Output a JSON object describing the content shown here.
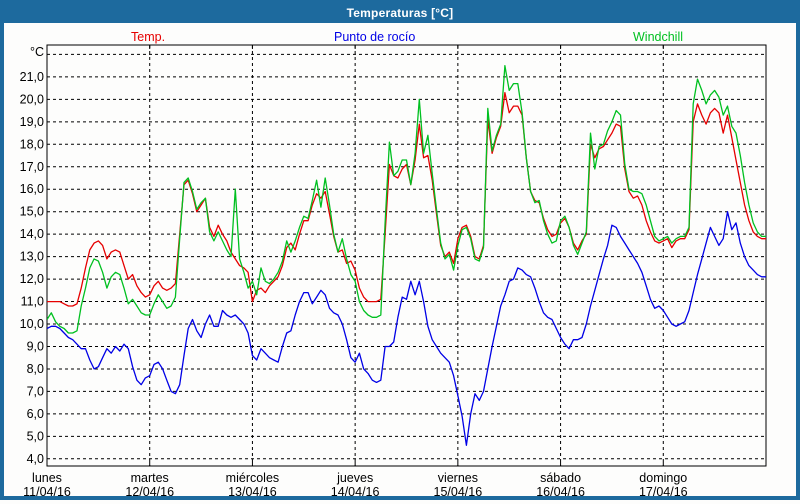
{
  "window": {
    "title": "Temperaturas [°C]",
    "titlebar_color": "#1d6a9e",
    "background": "#fdfdfc"
  },
  "legend": {
    "temp": {
      "label": "Temp.",
      "color": "#e60000"
    },
    "dewpoint": {
      "label": "Punto de rocío",
      "color": "#0000e6"
    },
    "windchill": {
      "label": "Windchill",
      "color": "#00c020"
    }
  },
  "chart_data": {
    "type": "line",
    "title": "Temperaturas [°C]",
    "unit_label": "°C",
    "grid": true,
    "ylim": [
      3.68,
      22.42
    ],
    "y_grid_values": [
      22,
      21,
      20,
      19,
      18,
      17,
      16,
      15,
      14,
      13,
      12,
      11,
      10,
      9,
      8,
      7,
      6,
      5,
      4
    ],
    "y_tick_values": [
      21,
      20,
      19,
      18,
      17,
      16,
      15,
      14,
      13,
      12,
      11,
      10,
      9,
      8,
      7,
      6,
      5,
      4
    ],
    "y_tick_labels": [
      "21,0",
      "20,0",
      "19,0",
      "18,0",
      "17,0",
      "16,0",
      "15,0",
      "14,0",
      "13,0",
      "12,0",
      "11,0",
      "10,0",
      "9,0",
      "8,0",
      "7,0",
      "6,0",
      "5,0",
      "4,0"
    ],
    "x_days": [
      {
        "name": "lunes",
        "date": "11/04/16"
      },
      {
        "name": "martes",
        "date": "12/04/16"
      },
      {
        "name": "miércoles",
        "date": "13/04/16"
      },
      {
        "name": "jueves",
        "date": "14/04/16"
      },
      {
        "name": "viernes",
        "date": "15/04/16"
      },
      {
        "name": "sábado",
        "date": "16/04/16"
      },
      {
        "name": "domingo",
        "date": "17/04/16"
      }
    ],
    "hours_per_day": 24,
    "series": [
      {
        "name": "Temp.",
        "color": "#e60000",
        "values": [
          11.0,
          11.0,
          11.0,
          11.0,
          10.9,
          10.8,
          10.8,
          10.9,
          11.6,
          12.5,
          13.3,
          13.6,
          13.7,
          13.5,
          12.9,
          13.2,
          13.3,
          13.2,
          12.6,
          12.0,
          12.2,
          11.7,
          11.4,
          11.2,
          11.3,
          11.7,
          11.9,
          11.6,
          11.5,
          11.6,
          11.8,
          14.0,
          16.2,
          16.4,
          15.8,
          15.0,
          15.3,
          15.6,
          14.3,
          13.9,
          14.4,
          14.0,
          13.7,
          13.2,
          12.9,
          12.6,
          12.5,
          12.3,
          11.0,
          11.5,
          11.6,
          11.4,
          11.7,
          11.9,
          12.1,
          12.6,
          13.4,
          13.6,
          13.3,
          14.0,
          14.6,
          14.6,
          15.3,
          15.8,
          15.6,
          15.9,
          14.9,
          13.9,
          13.2,
          13.3,
          12.7,
          12.8,
          12.4,
          11.6,
          11.2,
          11.0,
          11.0,
          11.0,
          11.1,
          14.0,
          17.1,
          16.6,
          16.5,
          16.9,
          17.1,
          16.2,
          17.3,
          18.9,
          17.4,
          17.5,
          16.4,
          14.9,
          13.5,
          13.0,
          13.2,
          12.7,
          13.8,
          14.3,
          14.4,
          13.9,
          13.0,
          12.9,
          13.5,
          19.1,
          17.6,
          18.3,
          18.8,
          20.3,
          19.4,
          19.7,
          19.7,
          19.3,
          17.4,
          15.9,
          15.5,
          15.4,
          14.7,
          14.2,
          13.9,
          14.0,
          14.5,
          14.7,
          14.3,
          13.6,
          13.3,
          13.7,
          14.0,
          18.0,
          17.4,
          17.8,
          17.9,
          18.2,
          18.5,
          18.9,
          18.8,
          16.9,
          15.9,
          15.6,
          15.7,
          15.3,
          14.6,
          14.1,
          13.7,
          13.6,
          13.7,
          13.8,
          13.4,
          13.7,
          13.8,
          13.8,
          14.2,
          19.0,
          19.8,
          19.3,
          18.9,
          19.4,
          19.6,
          19.4,
          18.5,
          19.3,
          18.3,
          17.3,
          16.3,
          15.3,
          14.6,
          14.1,
          13.9,
          13.8,
          13.8
        ]
      },
      {
        "name": "Punto de rocío",
        "color": "#0000e6",
        "values": [
          9.8,
          9.9,
          9.9,
          9.8,
          9.6,
          9.4,
          9.3,
          9.1,
          8.9,
          8.9,
          8.4,
          8.0,
          8.1,
          8.5,
          8.9,
          8.7,
          9.0,
          8.8,
          9.1,
          8.9,
          8.1,
          7.5,
          7.3,
          7.6,
          7.7,
          8.2,
          8.3,
          8.0,
          7.5,
          7.0,
          6.9,
          7.3,
          8.6,
          9.8,
          10.2,
          9.7,
          9.4,
          10.0,
          10.4,
          9.9,
          9.9,
          10.6,
          10.4,
          10.3,
          10.4,
          10.2,
          10.0,
          9.6,
          8.6,
          8.4,
          8.9,
          8.7,
          8.5,
          8.4,
          8.3,
          9.0,
          9.6,
          9.7,
          10.4,
          11.0,
          11.4,
          11.4,
          10.9,
          11.2,
          11.5,
          11.3,
          10.7,
          10.5,
          10.4,
          10.0,
          9.3,
          8.5,
          8.3,
          8.7,
          8.0,
          7.8,
          7.5,
          7.4,
          7.5,
          9.0,
          9.0,
          9.2,
          10.3,
          11.2,
          11.1,
          11.9,
          11.3,
          11.9,
          11.0,
          9.9,
          9.3,
          9.0,
          8.7,
          8.5,
          8.3,
          7.7,
          6.8,
          5.9,
          4.6,
          6.0,
          6.9,
          6.6,
          7.0,
          8.0,
          9.0,
          9.9,
          10.8,
          11.3,
          11.9,
          12.0,
          12.5,
          12.4,
          12.2,
          12.1,
          11.6,
          11.0,
          10.5,
          10.3,
          10.2,
          9.8,
          9.4,
          9.1,
          8.9,
          9.3,
          9.3,
          9.4,
          10.0,
          10.8,
          11.5,
          12.2,
          12.9,
          13.5,
          14.4,
          14.3,
          13.9,
          13.6,
          13.3,
          13.0,
          12.7,
          12.3,
          11.7,
          11.1,
          10.7,
          10.8,
          10.6,
          10.3,
          10.0,
          9.9,
          10.0,
          10.1,
          10.6,
          11.4,
          12.2,
          12.9,
          13.6,
          14.3,
          13.9,
          13.5,
          13.8,
          15.0,
          14.2,
          14.5,
          13.6,
          13.0,
          12.6,
          12.4,
          12.2,
          12.1,
          12.1
        ]
      },
      {
        "name": "Windchill",
        "color": "#00c020",
        "values": [
          10.2,
          10.5,
          10.1,
          9.9,
          9.8,
          9.6,
          9.6,
          9.7,
          10.8,
          11.6,
          12.5,
          12.9,
          12.8,
          12.3,
          11.6,
          12.1,
          12.3,
          12.2,
          11.6,
          10.9,
          11.1,
          10.8,
          10.5,
          10.4,
          10.4,
          10.9,
          11.3,
          11.0,
          10.7,
          10.8,
          11.2,
          13.8,
          16.3,
          16.5,
          15.9,
          15.1,
          15.4,
          15.6,
          14.1,
          13.7,
          14.1,
          13.7,
          13.3,
          13.0,
          16.0,
          12.9,
          12.3,
          11.6,
          11.9,
          11.3,
          12.5,
          11.9,
          11.8,
          12.0,
          12.3,
          12.8,
          13.7,
          13.2,
          13.7,
          14.3,
          14.8,
          14.7,
          15.5,
          16.4,
          15.2,
          16.5,
          15.3,
          14.0,
          13.2,
          13.8,
          12.9,
          12.2,
          11.9,
          11.0,
          10.6,
          10.4,
          10.3,
          10.3,
          10.4,
          14.5,
          18.1,
          16.6,
          16.8,
          17.3,
          17.3,
          16.2,
          17.6,
          20.0,
          17.6,
          18.4,
          16.7,
          15.1,
          13.6,
          12.9,
          13.1,
          12.4,
          13.5,
          14.2,
          14.3,
          13.8,
          12.9,
          12.8,
          13.4,
          19.6,
          17.7,
          18.4,
          18.9,
          21.5,
          20.4,
          20.7,
          20.7,
          19.4,
          17.4,
          15.9,
          15.4,
          15.5,
          14.6,
          14.0,
          13.6,
          13.7,
          14.6,
          14.8,
          14.3,
          13.5,
          13.1,
          13.6,
          14.1,
          18.5,
          16.9,
          17.9,
          18.0,
          18.6,
          19.0,
          19.5,
          19.3,
          17.1,
          16.0,
          15.9,
          15.9,
          15.8,
          15.3,
          14.6,
          13.9,
          13.7,
          13.8,
          13.9,
          13.6,
          13.8,
          13.9,
          13.9,
          14.3,
          19.8,
          20.9,
          20.4,
          19.8,
          20.2,
          20.4,
          20.1,
          19.3,
          19.7,
          18.8,
          18.5,
          17.5,
          16.3,
          15.3,
          14.5,
          14.1,
          13.9,
          13.9
        ]
      }
    ]
  }
}
